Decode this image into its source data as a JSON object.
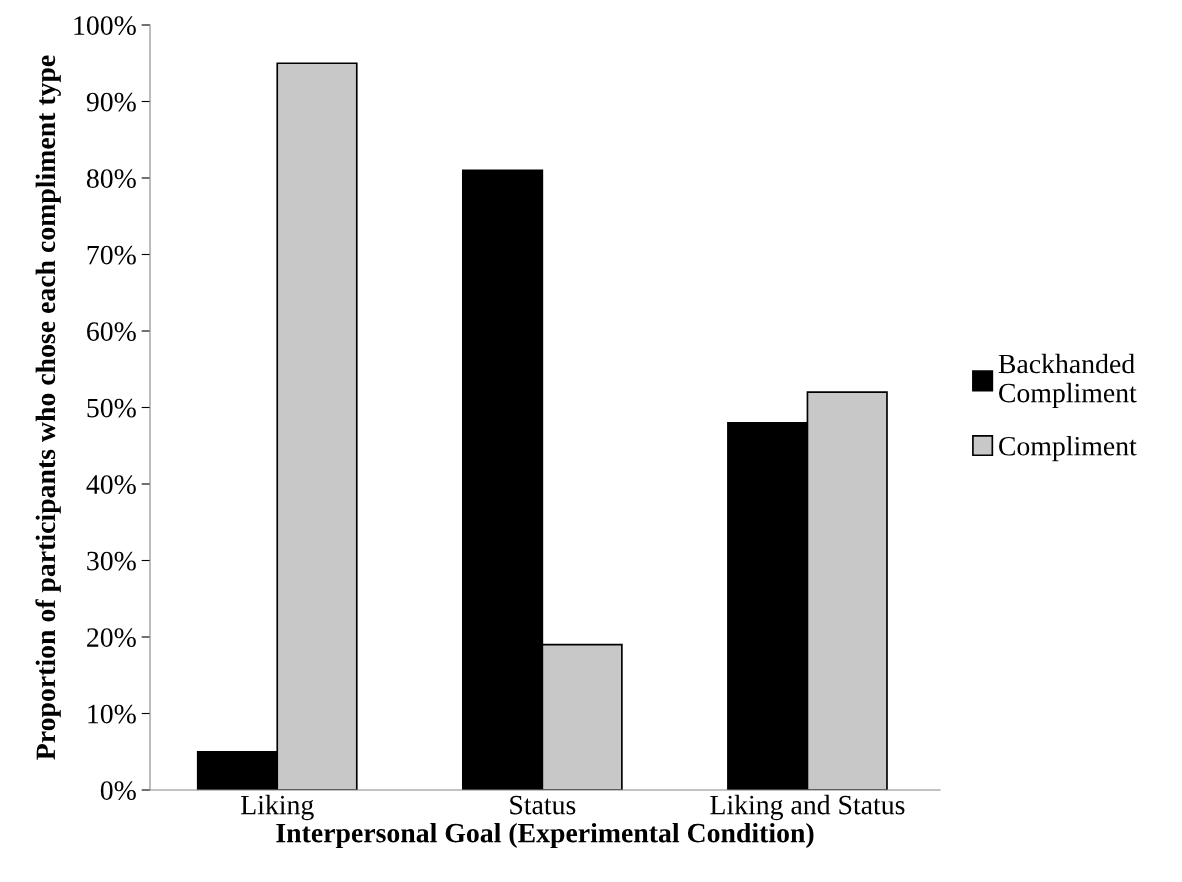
{
  "chart_data": {
    "type": "bar",
    "xlabel": "Interpersonal Goal (Experimental Condition)",
    "ylabel": "Proportion of participants who chose each compliment type",
    "categories": [
      "Liking",
      "Status",
      "Liking and Status"
    ],
    "series": [
      {
        "name": "Backhanded Compliment",
        "color": "#000000",
        "values": [
          5,
          81,
          48
        ]
      },
      {
        "name": "Compliment",
        "color": "#c8c8c8",
        "values": [
          95,
          19,
          52
        ]
      }
    ],
    "ylim": [
      0,
      100
    ],
    "yticks": [
      {
        "value": 0,
        "label": "0%"
      },
      {
        "value": 10,
        "label": "10%"
      },
      {
        "value": 20,
        "label": "20%"
      },
      {
        "value": 30,
        "label": "30%"
      },
      {
        "value": 40,
        "label": "40%"
      },
      {
        "value": 50,
        "label": "50%"
      },
      {
        "value": 60,
        "label": "60%"
      },
      {
        "value": 70,
        "label": "70%"
      },
      {
        "value": 80,
        "label": "80%"
      },
      {
        "value": 90,
        "label": "90%"
      },
      {
        "value": 100,
        "label": "100%"
      }
    ],
    "grid": false,
    "legend": "right"
  }
}
